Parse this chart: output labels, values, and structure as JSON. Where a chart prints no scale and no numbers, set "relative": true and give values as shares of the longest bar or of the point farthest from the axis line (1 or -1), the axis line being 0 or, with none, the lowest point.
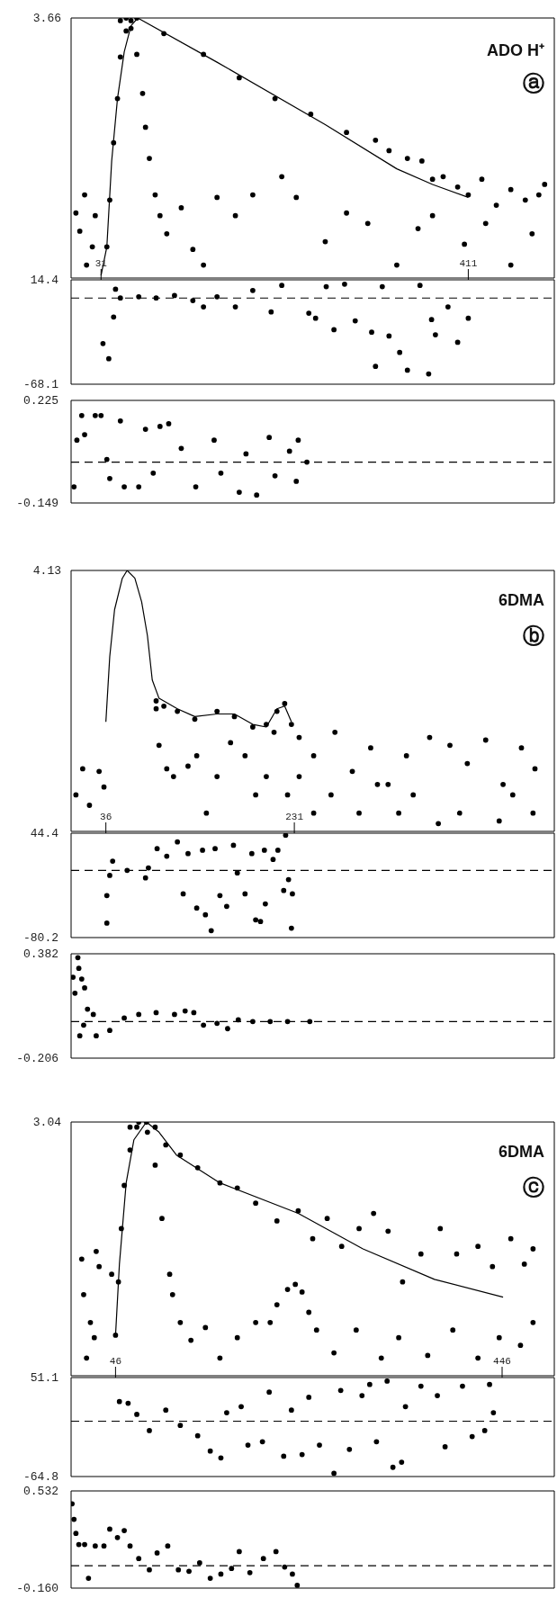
{
  "chart_data": [
    {
      "type": "scatter",
      "relative": true,
      "xlim": [
        0,
        500
      ],
      "xticks": [
        31,
        411
      ],
      "marker": "circle",
      "annotations": [
        "3.66",
        "ADO H⁺",
        "ⓐ"
      ],
      "series": [
        {
          "color": "#000000",
          "x": [
            5,
            9,
            14,
            16,
            22,
            25,
            37,
            40,
            44,
            48,
            51,
            57,
            62,
            68,
            96,
            137,
            174,
            211,
            248,
            285,
            315,
            329,
            348,
            363,
            374,
            385,
            400,
            411,
            425,
            440,
            455,
            470,
            484,
            490
          ],
          "values": [
            0.25,
            0.18,
            0.32,
            0.05,
            0.12,
            0.24,
            0.12,
            0.3,
            0.52,
            0.69,
            0.85,
            0.95,
            0.99,
            1.0,
            0.94,
            0.86,
            0.77,
            0.69,
            0.63,
            0.56,
            0.53,
            0.49,
            0.46,
            0.45,
            0.38,
            0.39,
            0.35,
            0.32,
            0.38,
            0.28,
            0.34,
            0.3,
            0.32,
            0.36
          ]
        },
        {
          "type": "line",
          "marker": "none",
          "color": "#000000",
          "line_style": "solid",
          "x": [
            31,
            37,
            42,
            48,
            55,
            62,
            69,
            151,
            263,
            337,
            374,
            411
          ],
          "values": [
            0.01,
            0.12,
            0.45,
            0.69,
            0.87,
            0.97,
            1.0,
            0.83,
            0.59,
            0.42,
            0.36,
            0.31
          ]
        },
        {
          "color": "#000000",
          "x": [
            51,
            57,
            62,
            68,
            74,
            77,
            81,
            87,
            92,
            99,
            114,
            126,
            137,
            151,
            170,
            188,
            218,
            233,
            263,
            285,
            307,
            337,
            359,
            374,
            407,
            429,
            455,
            477
          ],
          "values": [
            0.99,
            1.0,
            0.96,
            0.86,
            0.71,
            0.58,
            0.46,
            0.32,
            0.24,
            0.17,
            0.27,
            0.11,
            0.05,
            0.31,
            0.24,
            0.32,
            0.39,
            0.31,
            0.14,
            0.25,
            0.21,
            0.05,
            0.19,
            0.24,
            0.13,
            0.21,
            0.05,
            0.17
          ]
        }
      ]
    },
    {
      "type": "scatter",
      "xlim": [
        0,
        500
      ],
      "ylim": [
        -68.1,
        14.4
      ],
      "yticks": [
        -68.1,
        14.4
      ],
      "tick_labels": "y",
      "marker": "circle",
      "ref_lines": [
        {
          "axis": "y",
          "value": 0,
          "line_style": "dashed"
        }
      ],
      "series": [
        {
          "color": "#000000",
          "x": [
            33,
            39,
            44,
            46,
            51,
            70,
            88,
            107,
            126,
            137,
            151,
            170,
            188,
            207,
            218,
            246,
            253,
            264,
            272,
            283,
            294,
            311,
            315,
            322,
            329,
            340,
            348,
            361,
            370,
            373,
            377,
            390,
            400,
            411
          ],
          "values": [
            -36,
            -48,
            -15,
            7,
            0,
            1,
            0,
            2,
            -2,
            -7,
            1,
            -7,
            6,
            -11,
            10,
            -12,
            -16,
            9,
            -25,
            11,
            -18,
            -27,
            -54,
            9,
            -30,
            -43,
            -57,
            10,
            -60,
            -17,
            -29,
            -7,
            -35,
            -16
          ]
        }
      ]
    },
    {
      "type": "scatter",
      "xlim": [
        0,
        500
      ],
      "ylim": [
        -0.149,
        0.225
      ],
      "yticks": [
        -0.149,
        0.225
      ],
      "tick_labels": "y",
      "marker": "circle",
      "ref_lines": [
        {
          "axis": "y",
          "value": 0,
          "line_style": "dashed"
        }
      ],
      "series": [
        {
          "color": "#000000",
          "x": [
            3,
            6,
            11,
            14,
            25,
            31,
            37,
            40,
            51,
            55,
            70,
            77,
            85,
            92,
            101,
            114,
            129,
            148,
            155,
            174,
            181,
            192,
            205,
            211,
            226,
            233,
            235,
            244
          ],
          "values": [
            -0.09,
            0.08,
            0.17,
            0.1,
            0.17,
            0.17,
            0.01,
            -0.06,
            0.15,
            -0.09,
            -0.09,
            0.12,
            -0.04,
            0.13,
            0.14,
            0.05,
            -0.09,
            0.08,
            -0.04,
            -0.11,
            0.03,
            -0.12,
            0.09,
            -0.05,
            0.04,
            -0.07,
            0.08,
            0.0
          ]
        }
      ]
    },
    {
      "type": "scatter",
      "relative": true,
      "xlim": [
        0,
        500
      ],
      "xticks": [
        36,
        231
      ],
      "marker": "circle",
      "annotations": [
        "4.13",
        "6DMA",
        "ⓑ"
      ],
      "series": [
        {
          "color": "#000000",
          "x": [
            5,
            12,
            19,
            29,
            34,
            88,
            96,
            110,
            128,
            151,
            169,
            188,
            202,
            213,
            221,
            228,
            236,
            251,
            273,
            291,
            310,
            328,
            347,
            371,
            392,
            410,
            429,
            447,
            466,
            480
          ],
          "values": [
            0.14,
            0.24,
            0.1,
            0.23,
            0.17,
            0.5,
            0.48,
            0.46,
            0.43,
            0.46,
            0.44,
            0.4,
            0.41,
            0.46,
            0.49,
            0.41,
            0.36,
            0.29,
            0.38,
            0.23,
            0.32,
            0.18,
            0.29,
            0.36,
            0.33,
            0.26,
            0.35,
            0.18,
            0.32,
            0.24
          ]
        },
        {
          "type": "line",
          "marker": "none",
          "color": "#000000",
          "line_style": "solid",
          "x": [
            36,
            40,
            45,
            53,
            58,
            66,
            73,
            79,
            84,
            91,
            110,
            128,
            151,
            169,
            188,
            202,
            213,
            221,
            228
          ],
          "values": [
            0.42,
            0.67,
            0.85,
            0.97,
            1.0,
            0.97,
            0.88,
            0.75,
            0.58,
            0.51,
            0.47,
            0.44,
            0.45,
            0.45,
            0.41,
            0.4,
            0.47,
            0.48,
            0.42
          ]
        },
        {
          "color": "#000000",
          "x": [
            88,
            91,
            99,
            106,
            121,
            130,
            140,
            151,
            165,
            180,
            191,
            202,
            210,
            224,
            236,
            251,
            269,
            298,
            317,
            339,
            354,
            380,
            402,
            443,
            457,
            478
          ],
          "values": [
            0.47,
            0.33,
            0.24,
            0.21,
            0.25,
            0.29,
            0.07,
            0.21,
            0.34,
            0.29,
            0.14,
            0.21,
            0.38,
            0.14,
            0.21,
            0.07,
            0.14,
            0.07,
            0.18,
            0.07,
            0.14,
            0.03,
            0.07,
            0.04,
            0.14,
            0.07
          ]
        }
      ]
    },
    {
      "type": "scatter",
      "xlim": [
        0,
        500
      ],
      "ylim": [
        -80.2,
        44.4
      ],
      "yticks": [
        -80.2,
        44.4
      ],
      "tick_labels": "y",
      "marker": "circle",
      "ref_lines": [
        {
          "axis": "y",
          "value": 0,
          "line_style": "dashed"
        }
      ],
      "series": [
        {
          "color": "#000000",
          "x": [
            37,
            37,
            40,
            43,
            58,
            77,
            80,
            89,
            99,
            110,
            116,
            121,
            130,
            136,
            139,
            145,
            149,
            154,
            161,
            168,
            172,
            180,
            187,
            191,
            196,
            200,
            201,
            209,
            214,
            220,
            222,
            225,
            228,
            229
          ],
          "values": [
            -30,
            -63,
            -6,
            11,
            0,
            -9,
            3,
            26,
            17,
            34,
            -28,
            20,
            -45,
            24,
            -53,
            -72,
            26,
            -30,
            -43,
            30,
            -3,
            -28,
            20,
            -59,
            -61,
            24,
            -40,
            13,
            24,
            -24,
            42,
            -11,
            -69,
            -28
          ]
        }
      ]
    },
    {
      "type": "scatter",
      "xlim": [
        0,
        500
      ],
      "ylim": [
        -0.206,
        0.382
      ],
      "yticks": [
        -0.206,
        0.382
      ],
      "tick_labels": "y",
      "marker": "circle",
      "ref_lines": [
        {
          "axis": "y",
          "value": 0,
          "line_style": "dashed"
        }
      ],
      "series": [
        {
          "color": "#000000",
          "x": [
            2,
            4,
            7,
            8,
            9,
            11,
            13,
            14,
            17,
            23,
            26,
            40,
            55,
            70,
            88,
            107,
            118,
            127,
            137,
            151,
            162,
            173,
            188,
            206,
            224,
            247
          ],
          "values": [
            0.25,
            0.16,
            0.36,
            0.3,
            -0.08,
            0.24,
            -0.02,
            0.19,
            0.07,
            0.04,
            -0.08,
            -0.05,
            0.02,
            0.04,
            0.05,
            0.04,
            0.06,
            0.05,
            -0.02,
            -0.01,
            -0.04,
            0.01,
            0.0,
            0.0,
            0.0,
            0.0
          ]
        }
      ]
    },
    {
      "type": "scatter",
      "relative": true,
      "xlim": [
        0,
        500
      ],
      "xticks": [
        46,
        446
      ],
      "marker": "circle",
      "annotations": [
        "3.04",
        "6DMA",
        "ⓒ"
      ],
      "series": [
        {
          "color": "#000000",
          "x": [
            11,
            13,
            16,
            20,
            24,
            26,
            29,
            42,
            46,
            49,
            52,
            55,
            61,
            68,
            78,
            87,
            98,
            113,
            131,
            154,
            172,
            191,
            213,
            235,
            250,
            265,
            280,
            298,
            313,
            328,
            343,
            362,
            382,
            399,
            421,
            436,
            455,
            469,
            478
          ],
          "values": [
            0.46,
            0.32,
            0.07,
            0.21,
            0.15,
            0.49,
            0.43,
            0.4,
            0.16,
            0.37,
            0.58,
            0.75,
            0.89,
            0.98,
            1.0,
            0.98,
            0.91,
            0.87,
            0.82,
            0.76,
            0.74,
            0.68,
            0.61,
            0.65,
            0.54,
            0.62,
            0.51,
            0.58,
            0.64,
            0.57,
            0.37,
            0.48,
            0.58,
            0.48,
            0.51,
            0.43,
            0.54,
            0.44,
            0.5
          ]
        },
        {
          "type": "line",
          "marker": "none",
          "color": "#000000",
          "line_style": "solid",
          "x": [
            46,
            50,
            57,
            65,
            78,
            91,
            109,
            154,
            235,
            302,
            376,
            447
          ],
          "values": [
            0.16,
            0.44,
            0.76,
            0.93,
            1.0,
            0.96,
            0.87,
            0.76,
            0.64,
            0.5,
            0.38,
            0.31
          ]
        },
        {
          "color": "#000000",
          "x": [
            61,
            70,
            79,
            87,
            94,
            102,
            105,
            113,
            124,
            139,
            154,
            172,
            191,
            206,
            213,
            224,
            232,
            239,
            246,
            254,
            272,
            295,
            321,
            339,
            369,
            395,
            421,
            443,
            465,
            478
          ],
          "values": [
            0.98,
            1.0,
            0.96,
            0.83,
            0.62,
            0.4,
            0.32,
            0.21,
            0.14,
            0.19,
            0.07,
            0.15,
            0.21,
            0.21,
            0.28,
            0.34,
            0.36,
            0.33,
            0.25,
            0.18,
            0.09,
            0.18,
            0.07,
            0.15,
            0.08,
            0.18,
            0.07,
            0.15,
            0.12,
            0.21
          ]
        }
      ]
    },
    {
      "type": "scatter",
      "xlim": [
        0,
        500
      ],
      "ylim": [
        -64.8,
        51.1
      ],
      "yticks": [
        -64.8,
        51.1
      ],
      "tick_labels": "y",
      "marker": "circle",
      "ref_lines": [
        {
          "axis": "y",
          "value": 0,
          "line_style": "dashed"
        }
      ],
      "series": [
        {
          "color": "#000000",
          "x": [
            50,
            59,
            68,
            81,
            98,
            113,
            131,
            144,
            155,
            161,
            176,
            183,
            198,
            205,
            220,
            228,
            239,
            246,
            257,
            272,
            279,
            288,
            301,
            309,
            316,
            327,
            333,
            342,
            346,
            362,
            379,
            387,
            405,
            415,
            428,
            433,
            437
          ],
          "values": [
            23,
            21,
            8,
            -11,
            13,
            -5,
            -17,
            -35,
            -43,
            10,
            17,
            -28,
            -24,
            34,
            -41,
            13,
            -39,
            28,
            -28,
            -61,
            36,
            -33,
            30,
            43,
            -24,
            47,
            -54,
            -48,
            17,
            41,
            30,
            -30,
            41,
            -18,
            -11,
            43,
            10
          ]
        }
      ]
    },
    {
      "type": "scatter",
      "xlim": [
        0,
        500
      ],
      "ylim": [
        -0.16,
        0.532
      ],
      "yticks": [
        {
          "value": -0.16,
          "label": "-0.160"
        },
        0.532
      ],
      "tick_labels": "y",
      "marker": "circle",
      "ref_lines": [
        {
          "axis": "y",
          "value": 0,
          "line_style": "dashed"
        }
      ],
      "series": [
        {
          "color": "#000000",
          "x": [
            1,
            3,
            5,
            8,
            14,
            18,
            25,
            34,
            40,
            48,
            55,
            61,
            70,
            81,
            89,
            100,
            111,
            122,
            133,
            144,
            155,
            166,
            174,
            185,
            199,
            212,
            221,
            229,
            234
          ],
          "values": [
            0.44,
            0.33,
            0.23,
            0.15,
            0.15,
            -0.09,
            0.14,
            0.14,
            0.26,
            0.2,
            0.25,
            0.14,
            0.05,
            -0.03,
            0.09,
            0.14,
            -0.03,
            -0.04,
            0.02,
            -0.09,
            -0.06,
            -0.02,
            0.1,
            -0.05,
            0.05,
            0.1,
            -0.01,
            -0.06,
            -0.14
          ]
        }
      ]
    }
  ]
}
